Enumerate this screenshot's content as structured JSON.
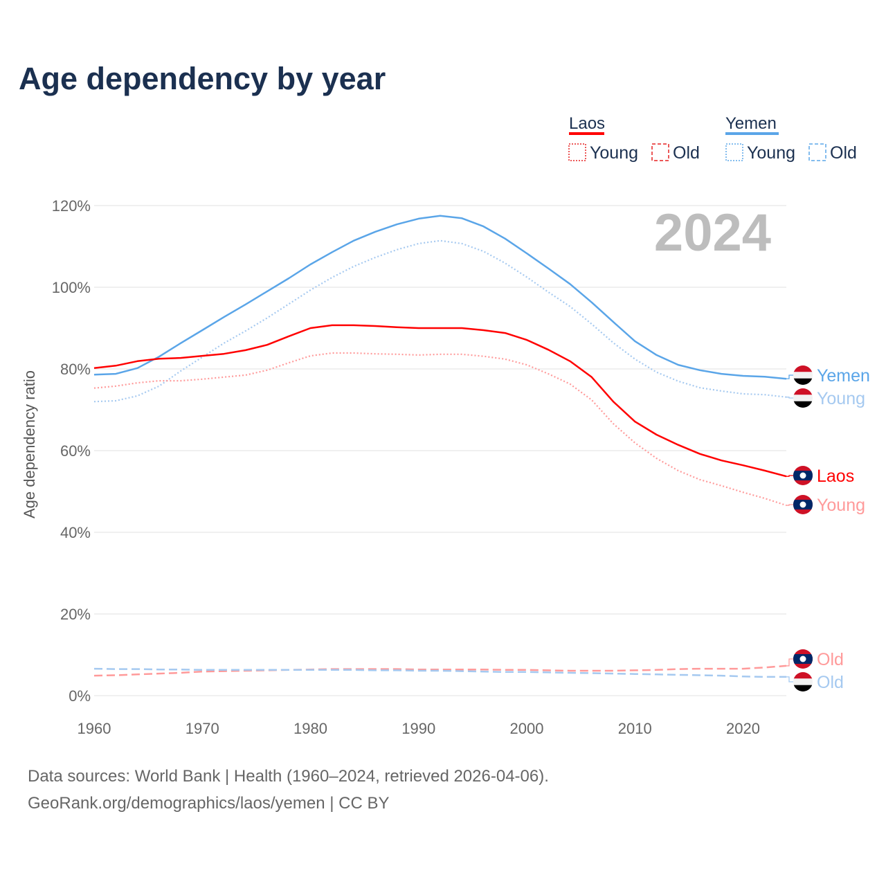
{
  "title": "Age dependency by year",
  "year_badge": "2024",
  "colors": {
    "laos": "#ff0000",
    "laos_light": "#ff9a9a",
    "yemen": "#5aa5e8",
    "yemen_light": "#a5c9f0"
  },
  "legend": {
    "laos": {
      "name": "Laos",
      "young": "Young",
      "old": "Old"
    },
    "yemen": {
      "name": "Yemen",
      "young": "Young",
      "old": "Old"
    }
  },
  "end_labels": {
    "yemen": "Yemen",
    "yemen_young": "Young",
    "laos": "Laos",
    "laos_young": "Young",
    "laos_old": "Old",
    "yemen_old": "Old"
  },
  "sources": [
    "Data sources: World Bank | Health (1960–2024, retrieved 2026-04-06).",
    "GeoRank.org/demographics/laos/yemen | CC BY"
  ],
  "chart_data": {
    "type": "line",
    "title": "Age dependency by year",
    "xlabel": "",
    "ylabel": "Age dependency ratio",
    "xlim": [
      1960,
      2024
    ],
    "ylim": [
      0,
      120
    ],
    "x_ticks": [
      "1960",
      "1970",
      "1980",
      "1990",
      "2000",
      "2010",
      "2020"
    ],
    "y_ticks": [
      "0%",
      "20%",
      "40%",
      "60%",
      "80%",
      "100%",
      "120%"
    ],
    "grid": true,
    "legend_position": "top-right",
    "x": [
      1960,
      1962,
      1964,
      1966,
      1968,
      1970,
      1972,
      1974,
      1976,
      1978,
      1980,
      1982,
      1984,
      1986,
      1988,
      1990,
      1992,
      1994,
      1996,
      1998,
      2000,
      2002,
      2004,
      2006,
      2008,
      2010,
      2012,
      2014,
      2016,
      2018,
      2020,
      2022,
      2024
    ],
    "series": [
      {
        "name": "Yemen",
        "key": "yemen",
        "style": "solid",
        "values": [
          78.6,
          78.8,
          80.2,
          83.0,
          86.3,
          89.5,
          92.7,
          95.8,
          99.0,
          102.2,
          105.6,
          108.6,
          111.4,
          113.6,
          115.4,
          116.8,
          117.5,
          116.9,
          114.9,
          111.9,
          108.3,
          104.6,
          100.8,
          96.3,
          91.5,
          86.8,
          83.4,
          81.0,
          79.7,
          78.8,
          78.3,
          78.1,
          77.6
        ]
      },
      {
        "name": "Yemen Young",
        "key": "yemen_young",
        "style": "dotted",
        "values": [
          72.0,
          72.2,
          73.4,
          75.8,
          79.5,
          82.9,
          86.3,
          89.3,
          92.5,
          95.9,
          99.3,
          102.4,
          105.1,
          107.3,
          109.2,
          110.7,
          111.4,
          110.7,
          108.8,
          105.9,
          102.5,
          98.8,
          95.3,
          91.0,
          86.4,
          82.4,
          79.2,
          77.0,
          75.4,
          74.6,
          73.9,
          73.7,
          73.1
        ]
      },
      {
        "name": "Laos",
        "key": "laos",
        "style": "solid",
        "values": [
          80.2,
          80.8,
          81.9,
          82.5,
          82.7,
          83.2,
          83.7,
          84.6,
          85.9,
          88.0,
          90.0,
          90.7,
          90.7,
          90.5,
          90.2,
          90.0,
          90.0,
          90.0,
          89.5,
          88.8,
          87.1,
          84.7,
          81.9,
          78.0,
          72.0,
          67.1,
          63.9,
          61.4,
          59.2,
          57.6,
          56.4,
          55.1,
          53.7
        ]
      },
      {
        "name": "Laos Young",
        "key": "laos_young",
        "style": "dotted",
        "values": [
          75.3,
          75.8,
          76.6,
          77.1,
          77.1,
          77.5,
          78.0,
          78.5,
          79.7,
          81.5,
          83.2,
          83.9,
          83.9,
          83.7,
          83.6,
          83.4,
          83.6,
          83.6,
          83.1,
          82.4,
          81.0,
          78.8,
          76.3,
          72.4,
          66.6,
          61.9,
          58.1,
          55.1,
          52.9,
          51.4,
          49.8,
          48.3,
          46.6
        ]
      },
      {
        "name": "Laos Old",
        "key": "laos_old",
        "style": "dashed",
        "values": [
          4.9,
          5.0,
          5.2,
          5.4,
          5.6,
          5.9,
          6.0,
          6.1,
          6.2,
          6.3,
          6.4,
          6.5,
          6.5,
          6.5,
          6.5,
          6.4,
          6.4,
          6.4,
          6.4,
          6.3,
          6.3,
          6.2,
          6.1,
          6.1,
          6.1,
          6.2,
          6.3,
          6.5,
          6.6,
          6.6,
          6.6,
          6.9,
          7.3
        ]
      },
      {
        "name": "Yemen Old",
        "key": "yemen_old",
        "style": "dashed",
        "values": [
          6.6,
          6.5,
          6.5,
          6.4,
          6.4,
          6.3,
          6.3,
          6.3,
          6.3,
          6.3,
          6.3,
          6.3,
          6.3,
          6.2,
          6.2,
          6.1,
          6.1,
          6.0,
          5.9,
          5.8,
          5.8,
          5.7,
          5.6,
          5.5,
          5.4,
          5.3,
          5.2,
          5.1,
          5.0,
          4.9,
          4.7,
          4.6,
          4.6
        ]
      }
    ]
  }
}
